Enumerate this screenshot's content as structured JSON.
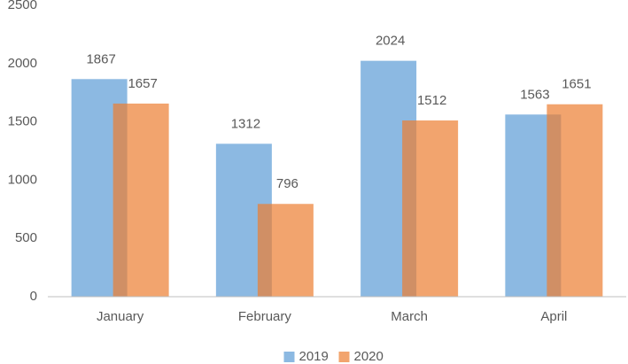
{
  "chart_data": {
    "type": "bar",
    "categories": [
      "January",
      "February",
      "March",
      "April"
    ],
    "series": [
      {
        "name": "2019",
        "color": "#5b9bd5",
        "values": [
          1867,
          1312,
          2024,
          1563
        ]
      },
      {
        "name": "2020",
        "color": "#ed7d31",
        "values": [
          1657,
          796,
          1512,
          1651
        ]
      }
    ],
    "ylim": [
      0,
      2500
    ],
    "yticks": [
      0,
      500,
      1000,
      1500,
      2000,
      2500
    ],
    "legend": "bottom",
    "grid": false
  }
}
